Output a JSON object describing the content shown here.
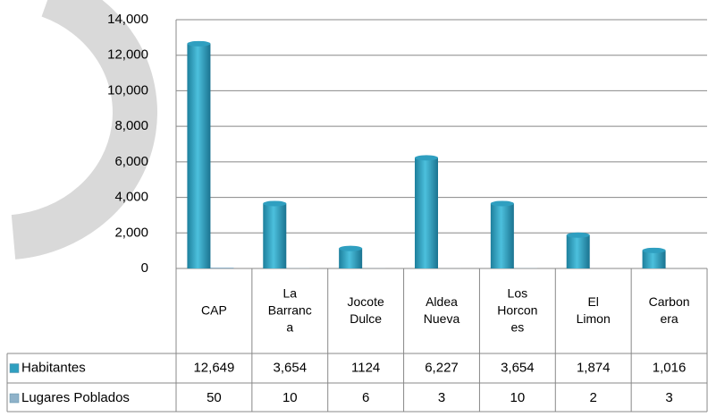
{
  "chart_data": {
    "type": "bar",
    "categories": [
      "CAP",
      "La Barranca",
      "Jocote Dulce",
      "Aldea Nueva",
      "Los Horcones",
      "El Limon",
      "Carbonera"
    ],
    "series": [
      {
        "name": "Habitantes",
        "color": "#2f9fc0",
        "values": [
          12649,
          3654,
          1124,
          6227,
          3654,
          1874,
          1016
        ],
        "value_labels": [
          "12,649",
          "3,654",
          "1124",
          "6,227",
          "3,654",
          "1,874",
          "1,016"
        ]
      },
      {
        "name": "Lugares Poblados",
        "color": "#8fb2c9",
        "values": [
          50,
          10,
          6,
          3,
          10,
          2,
          3
        ]
      }
    ],
    "ylim": [
      0,
      14000
    ],
    "yticks": [
      0,
      {
        "value": 2000,
        "label": "2,000"
      },
      {
        "value": 4000,
        "label": "4,000"
      },
      {
        "value": 6000,
        "label": "6,000"
      },
      {
        "value": 8000,
        "label": "8,000"
      },
      {
        "value": 10000,
        "label": "10,000"
      },
      {
        "value": 12000,
        "label": "12,000"
      },
      {
        "value": 14000,
        "label": "14,000"
      }
    ],
    "grid": true
  }
}
